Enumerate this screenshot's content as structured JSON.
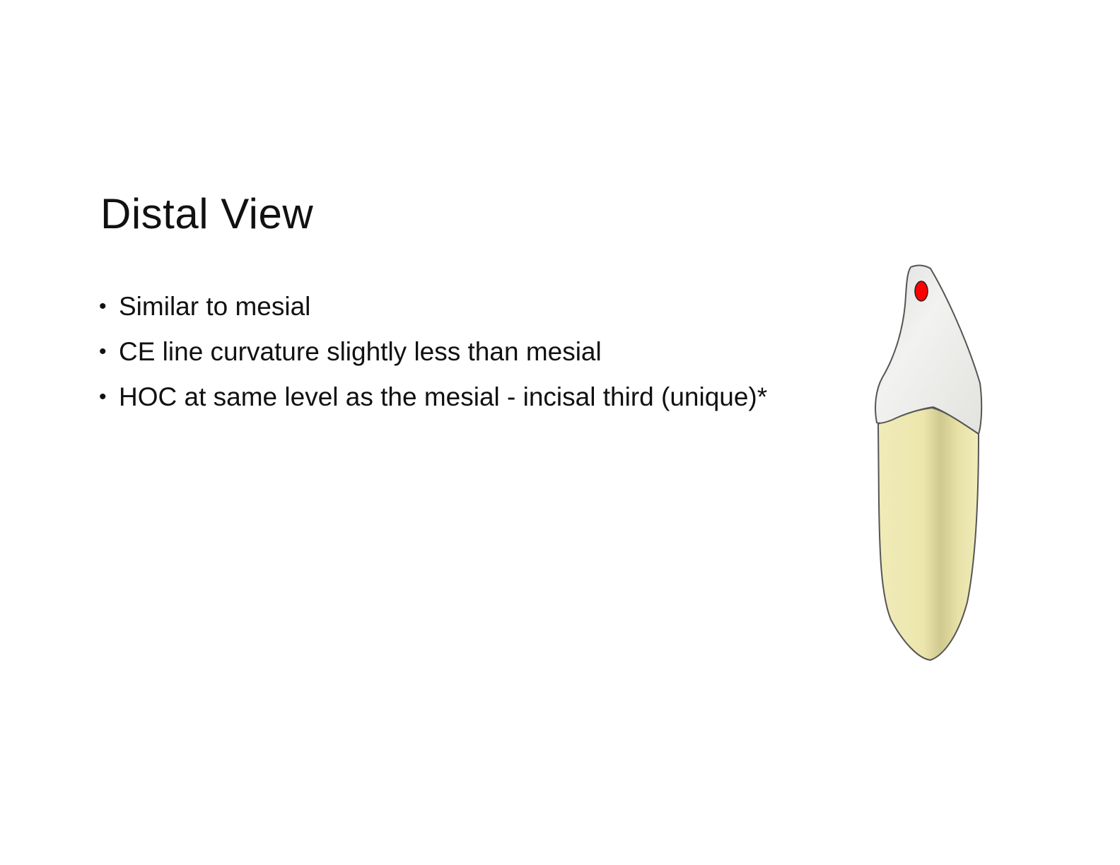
{
  "slide": {
    "title": "Distal View",
    "bullets": [
      "Similar to mesial",
      "CE line curvature slightly less than mesial",
      "HOC at same level as the mesial - incisal third (unique)*"
    ],
    "bullet_symbol": "•"
  },
  "figure": {
    "icon": "tooth-distal-view-illustration",
    "colors": {
      "crown": "#ececea",
      "root": "#ece6ad",
      "root_shadow": "#c9c389",
      "outline": "#555555",
      "hoc_marker": "#ff0000"
    }
  }
}
